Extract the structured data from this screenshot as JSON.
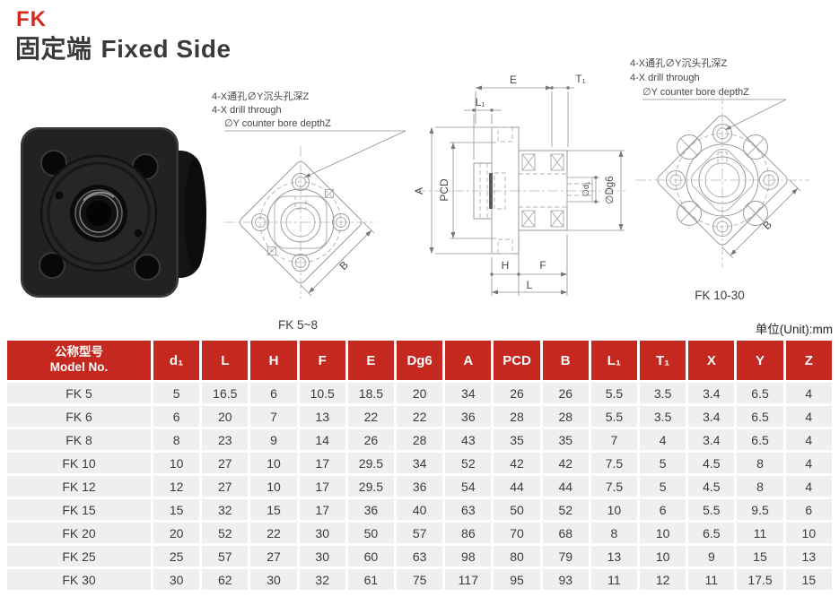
{
  "page": {
    "series": "FK",
    "title_cn": "固定端",
    "title_en": "Fixed Side",
    "unit_label": "单位(Unit):mm"
  },
  "annotation": {
    "line1_cn": "4-X通孔∅Y沉头孔深Z",
    "line2_en": "4-X drill through",
    "line3_en": "∅Y counter bore depthZ"
  },
  "figures": {
    "small_model_range": "FK 5~8",
    "large_model_range": "FK 10-30",
    "dims": {
      "E": "E",
      "T1": "T₁",
      "L1": "L₁",
      "A": "A",
      "PCD": "PCD",
      "d1": "∅d₁",
      "Dg6": "∅Dg6",
      "H": "H",
      "F": "F",
      "L": "L",
      "B": "B"
    }
  },
  "table": {
    "model_header_cn": "公称型号",
    "model_header_en": "Model No.",
    "columns": [
      "d₁",
      "L",
      "H",
      "F",
      "E",
      "Dg6",
      "A",
      "PCD",
      "B",
      "L₁",
      "T₁",
      "X",
      "Y",
      "Z"
    ],
    "rows": [
      [
        "FK 5",
        "5",
        "16.5",
        "6",
        "10.5",
        "18.5",
        "20",
        "34",
        "26",
        "26",
        "5.5",
        "3.5",
        "3.4",
        "6.5",
        "4"
      ],
      [
        "FK 6",
        "6",
        "20",
        "7",
        "13",
        "22",
        "22",
        "36",
        "28",
        "28",
        "5.5",
        "3.5",
        "3.4",
        "6.5",
        "4"
      ],
      [
        "FK 8",
        "8",
        "23",
        "9",
        "14",
        "26",
        "28",
        "43",
        "35",
        "35",
        "7",
        "4",
        "3.4",
        "6.5",
        "4"
      ],
      [
        "FK 10",
        "10",
        "27",
        "10",
        "17",
        "29.5",
        "34",
        "52",
        "42",
        "42",
        "7.5",
        "5",
        "4.5",
        "8",
        "4"
      ],
      [
        "FK 12",
        "12",
        "27",
        "10",
        "17",
        "29.5",
        "36",
        "54",
        "44",
        "44",
        "7.5",
        "5",
        "4.5",
        "8",
        "4"
      ],
      [
        "FK 15",
        "15",
        "32",
        "15",
        "17",
        "36",
        "40",
        "63",
        "50",
        "52",
        "10",
        "6",
        "5.5",
        "9.5",
        "6"
      ],
      [
        "FK 20",
        "20",
        "52",
        "22",
        "30",
        "50",
        "57",
        "86",
        "70",
        "68",
        "8",
        "10",
        "6.5",
        "11",
        "10"
      ],
      [
        "FK 25",
        "25",
        "57",
        "27",
        "30",
        "60",
        "63",
        "98",
        "80",
        "79",
        "13",
        "10",
        "9",
        "15",
        "13"
      ],
      [
        "FK 30",
        "30",
        "62",
        "30",
        "32",
        "61",
        "75",
        "117",
        "95",
        "93",
        "11",
        "12",
        "11",
        "17.5",
        "15"
      ]
    ]
  },
  "colors": {
    "accent_red": "#c5281e",
    "row_bg": "#efefef",
    "drawing_line": "#9b9b9b",
    "text_dark": "#3a3a3a"
  }
}
